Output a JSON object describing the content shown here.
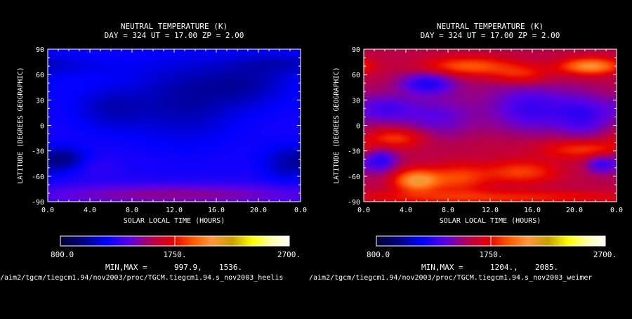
{
  "chart_data": [
    {
      "type": "heatmap",
      "title": "NEUTRAL TEMPERATURE (K)",
      "subtitle": "DAY = 324   UT = 17.00  ZP =    2.00",
      "xlabel": "SOLAR LOCAL TIME (HOURS)",
      "ylabel": "LATITUDE (DEGREES GEOGRAPHIC)",
      "xlim": [
        0,
        24
      ],
      "ylim": [
        -90,
        90
      ],
      "x_ticks": [
        "0.0",
        "4.0",
        "8.0",
        "12.0",
        "16.0",
        "20.0",
        "0.0"
      ],
      "y_ticks": [
        "-90",
        "-60",
        "-30",
        "0",
        "30",
        "60",
        "90"
      ],
      "colorbar": {
        "min": 800,
        "max": 2700,
        "labels": [
          "800.0",
          "1750.",
          "2700."
        ]
      },
      "minmax_label": "MIN,MAX =",
      "min_text": "997.9,",
      "max_text": "1536.",
      "min": 997.9,
      "max": 1536,
      "file_path": "/aim2/tgcm/tiegcm1.94/nov2003/proc/TGCM.tiegcm1.94.s_nov2003_heelis",
      "features": [
        {
          "x": 6,
          "y": 20,
          "v": 1080,
          "sx": 2.5,
          "sy": 18
        },
        {
          "x": 13,
          "y": 30,
          "v": 1050,
          "sx": 3.5,
          "sy": 35
        },
        {
          "x": 19,
          "y": 50,
          "v": 1070,
          "sx": 3,
          "sy": 20
        },
        {
          "x": 2,
          "y": 70,
          "v": 1150,
          "sx": 4,
          "sy": 10
        },
        {
          "x": 22,
          "y": 75,
          "v": 1150,
          "sx": 3,
          "sy": 8
        },
        {
          "x": 1.5,
          "y": -40,
          "v": 1000,
          "sx": 1.5,
          "sy": 10
        },
        {
          "x": 4.5,
          "y": -50,
          "v": 1280,
          "sx": 1.8,
          "sy": 9
        },
        {
          "x": 11,
          "y": -45,
          "v": 1230,
          "sx": 4,
          "sy": 15
        },
        {
          "x": 22.5,
          "y": -45,
          "v": 1080,
          "sx": 1.5,
          "sy": 15
        },
        {
          "x": 12,
          "y": -82,
          "v": 1480,
          "sx": 10,
          "sy": 9
        }
      ]
    },
    {
      "type": "heatmap",
      "title": "NEUTRAL TEMPERATURE (K)",
      "subtitle": "DAY = 324   UT = 17.00  ZP =    2.00",
      "xlabel": "SOLAR LOCAL TIME (HOURS)",
      "ylabel": "LATITUDE (DEGREES GEOGRAPHIC)",
      "xlim": [
        0,
        24
      ],
      "ylim": [
        -90,
        90
      ],
      "x_ticks": [
        "0.0",
        "4.0",
        "8.0",
        "12.0",
        "16.0",
        "20.0",
        "0.0"
      ],
      "y_ticks": [
        "-90",
        "-60",
        "-30",
        "0",
        "30",
        "60",
        "90"
      ],
      "colorbar": {
        "min": 800,
        "max": 2700,
        "labels": [
          "800.0",
          "1750.",
          "2700."
        ]
      },
      "minmax_label": "MIN,MAX =",
      "min_text": "1204.,",
      "max_text": "2085.",
      "min": 1204,
      "max": 2085,
      "file_path": "/aim2/tgcm/tiegcm1.94/nov2003/proc/TGCM.tiegcm1.94.s_nov2003_weimer",
      "features": [
        {
          "x": 6,
          "y": 50,
          "v": 1250,
          "sx": 1.8,
          "sy": 9
        },
        {
          "x": 2,
          "y": 20,
          "v": 1350,
          "sx": 2,
          "sy": 12
        },
        {
          "x": 7,
          "y": 10,
          "v": 1380,
          "sx": 2.5,
          "sy": 18
        },
        {
          "x": 16,
          "y": 20,
          "v": 1300,
          "sx": 3,
          "sy": 20
        },
        {
          "x": 21,
          "y": 10,
          "v": 1350,
          "sx": 1.8,
          "sy": 18
        },
        {
          "x": 12,
          "y": 45,
          "v": 1550,
          "sx": 3,
          "sy": 10
        },
        {
          "x": 21.5,
          "y": 70,
          "v": 2050,
          "sx": 2,
          "sy": 7
        },
        {
          "x": 10,
          "y": 70,
          "v": 1900,
          "sx": 3,
          "sy": 8
        },
        {
          "x": 15,
          "y": 60,
          "v": 1800,
          "sx": 2,
          "sy": 8
        },
        {
          "x": 1.5,
          "y": -40,
          "v": 1250,
          "sx": 1.2,
          "sy": 11
        },
        {
          "x": 5,
          "y": -65,
          "v": 2080,
          "sx": 1.5,
          "sy": 9
        },
        {
          "x": 9,
          "y": -62,
          "v": 1850,
          "sx": 2,
          "sy": 12
        },
        {
          "x": 15,
          "y": -55,
          "v": 1850,
          "sx": 2.5,
          "sy": 10
        },
        {
          "x": 21,
          "y": -28,
          "v": 1850,
          "sx": 3,
          "sy": 8
        },
        {
          "x": 22.5,
          "y": -45,
          "v": 1300,
          "sx": 1,
          "sy": 8
        },
        {
          "x": 3,
          "y": -15,
          "v": 1850,
          "sx": 2,
          "sy": 8
        },
        {
          "x": 12,
          "y": -25,
          "v": 1600,
          "sx": 3,
          "sy": 10
        },
        {
          "x": 12,
          "y": -85,
          "v": 1800,
          "sx": 10,
          "sy": 6
        }
      ]
    }
  ]
}
